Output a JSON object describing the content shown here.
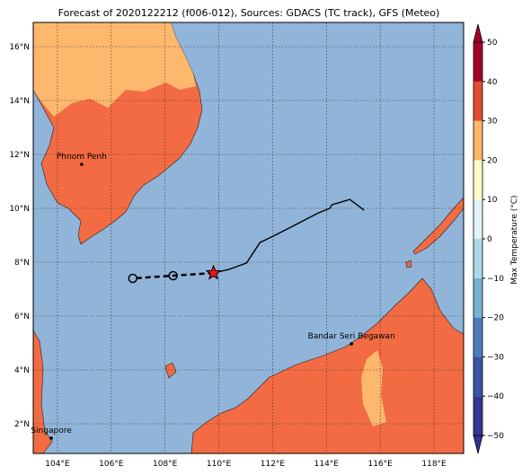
{
  "title": "Forecast of 2020122212 (f006-012), Sources: GDACS (TC track), GFS (Meteo)",
  "map": {
    "lonlim": [
      103.1,
      119.1
    ],
    "latlim": [
      0.9,
      16.9
    ],
    "lonticks": [
      {
        "value": 104,
        "label": "104°E"
      },
      {
        "value": 106,
        "label": "106°E"
      },
      {
        "value": 108,
        "label": "108°E"
      },
      {
        "value": 110,
        "label": "110°E"
      },
      {
        "value": 112,
        "label": "112°E"
      },
      {
        "value": 114,
        "label": "114°E"
      },
      {
        "value": 116,
        "label": "116°E"
      },
      {
        "value": 118,
        "label": "118°E"
      }
    ],
    "latticks": [
      {
        "value": 2,
        "label": "2°N"
      },
      {
        "value": 4,
        "label": "4°N"
      },
      {
        "value": 6,
        "label": "6°N"
      },
      {
        "value": 8,
        "label": "8°N"
      },
      {
        "value": 10,
        "label": "10°N"
      },
      {
        "value": 12,
        "label": "12°N"
      },
      {
        "value": 14,
        "label": "14°N"
      },
      {
        "value": 16,
        "label": "16°N"
      }
    ],
    "cities": [
      {
        "name": "Phnom Penh",
        "lon": 104.9,
        "lat": 11.63
      },
      {
        "name": "Bandar Seri Begawan",
        "lon": 114.93,
        "lat": 4.97
      },
      {
        "name": "Singapore",
        "lon": 103.77,
        "lat": 1.47
      }
    ],
    "track": {
      "past": {
        "lon": [
          109.8,
          110.37,
          111.03,
          111.53,
          112.03,
          112.87,
          113.7,
          114.13,
          114.2,
          114.87,
          115.4
        ],
        "lat": [
          7.6,
          7.73,
          7.97,
          8.73,
          8.97,
          9.4,
          9.83,
          10.0,
          10.13,
          10.33,
          9.93
        ]
      },
      "forecast": {
        "lon": [
          109.8,
          108.3,
          106.8
        ],
        "lat": [
          7.6,
          7.5,
          7.4
        ]
      }
    }
  },
  "colorbar": {
    "label": "Max Temperature (°C)",
    "ticks": [
      {
        "value": -50,
        "label": "−50"
      },
      {
        "value": -40,
        "label": "−40"
      },
      {
        "value": -30,
        "label": "−30"
      },
      {
        "value": -20,
        "label": "−20"
      },
      {
        "value": -10,
        "label": "−10"
      },
      0,
      10,
      20,
      30,
      40,
      50
    ],
    "colors": [
      "#313695",
      "#3a54a4",
      "#4d7db9",
      "#77b0d3",
      "#abd9e9",
      "#e0f3f8",
      "#fffbc8",
      "#fdb768",
      "#e34a33",
      "#a50026"
    ]
  }
}
